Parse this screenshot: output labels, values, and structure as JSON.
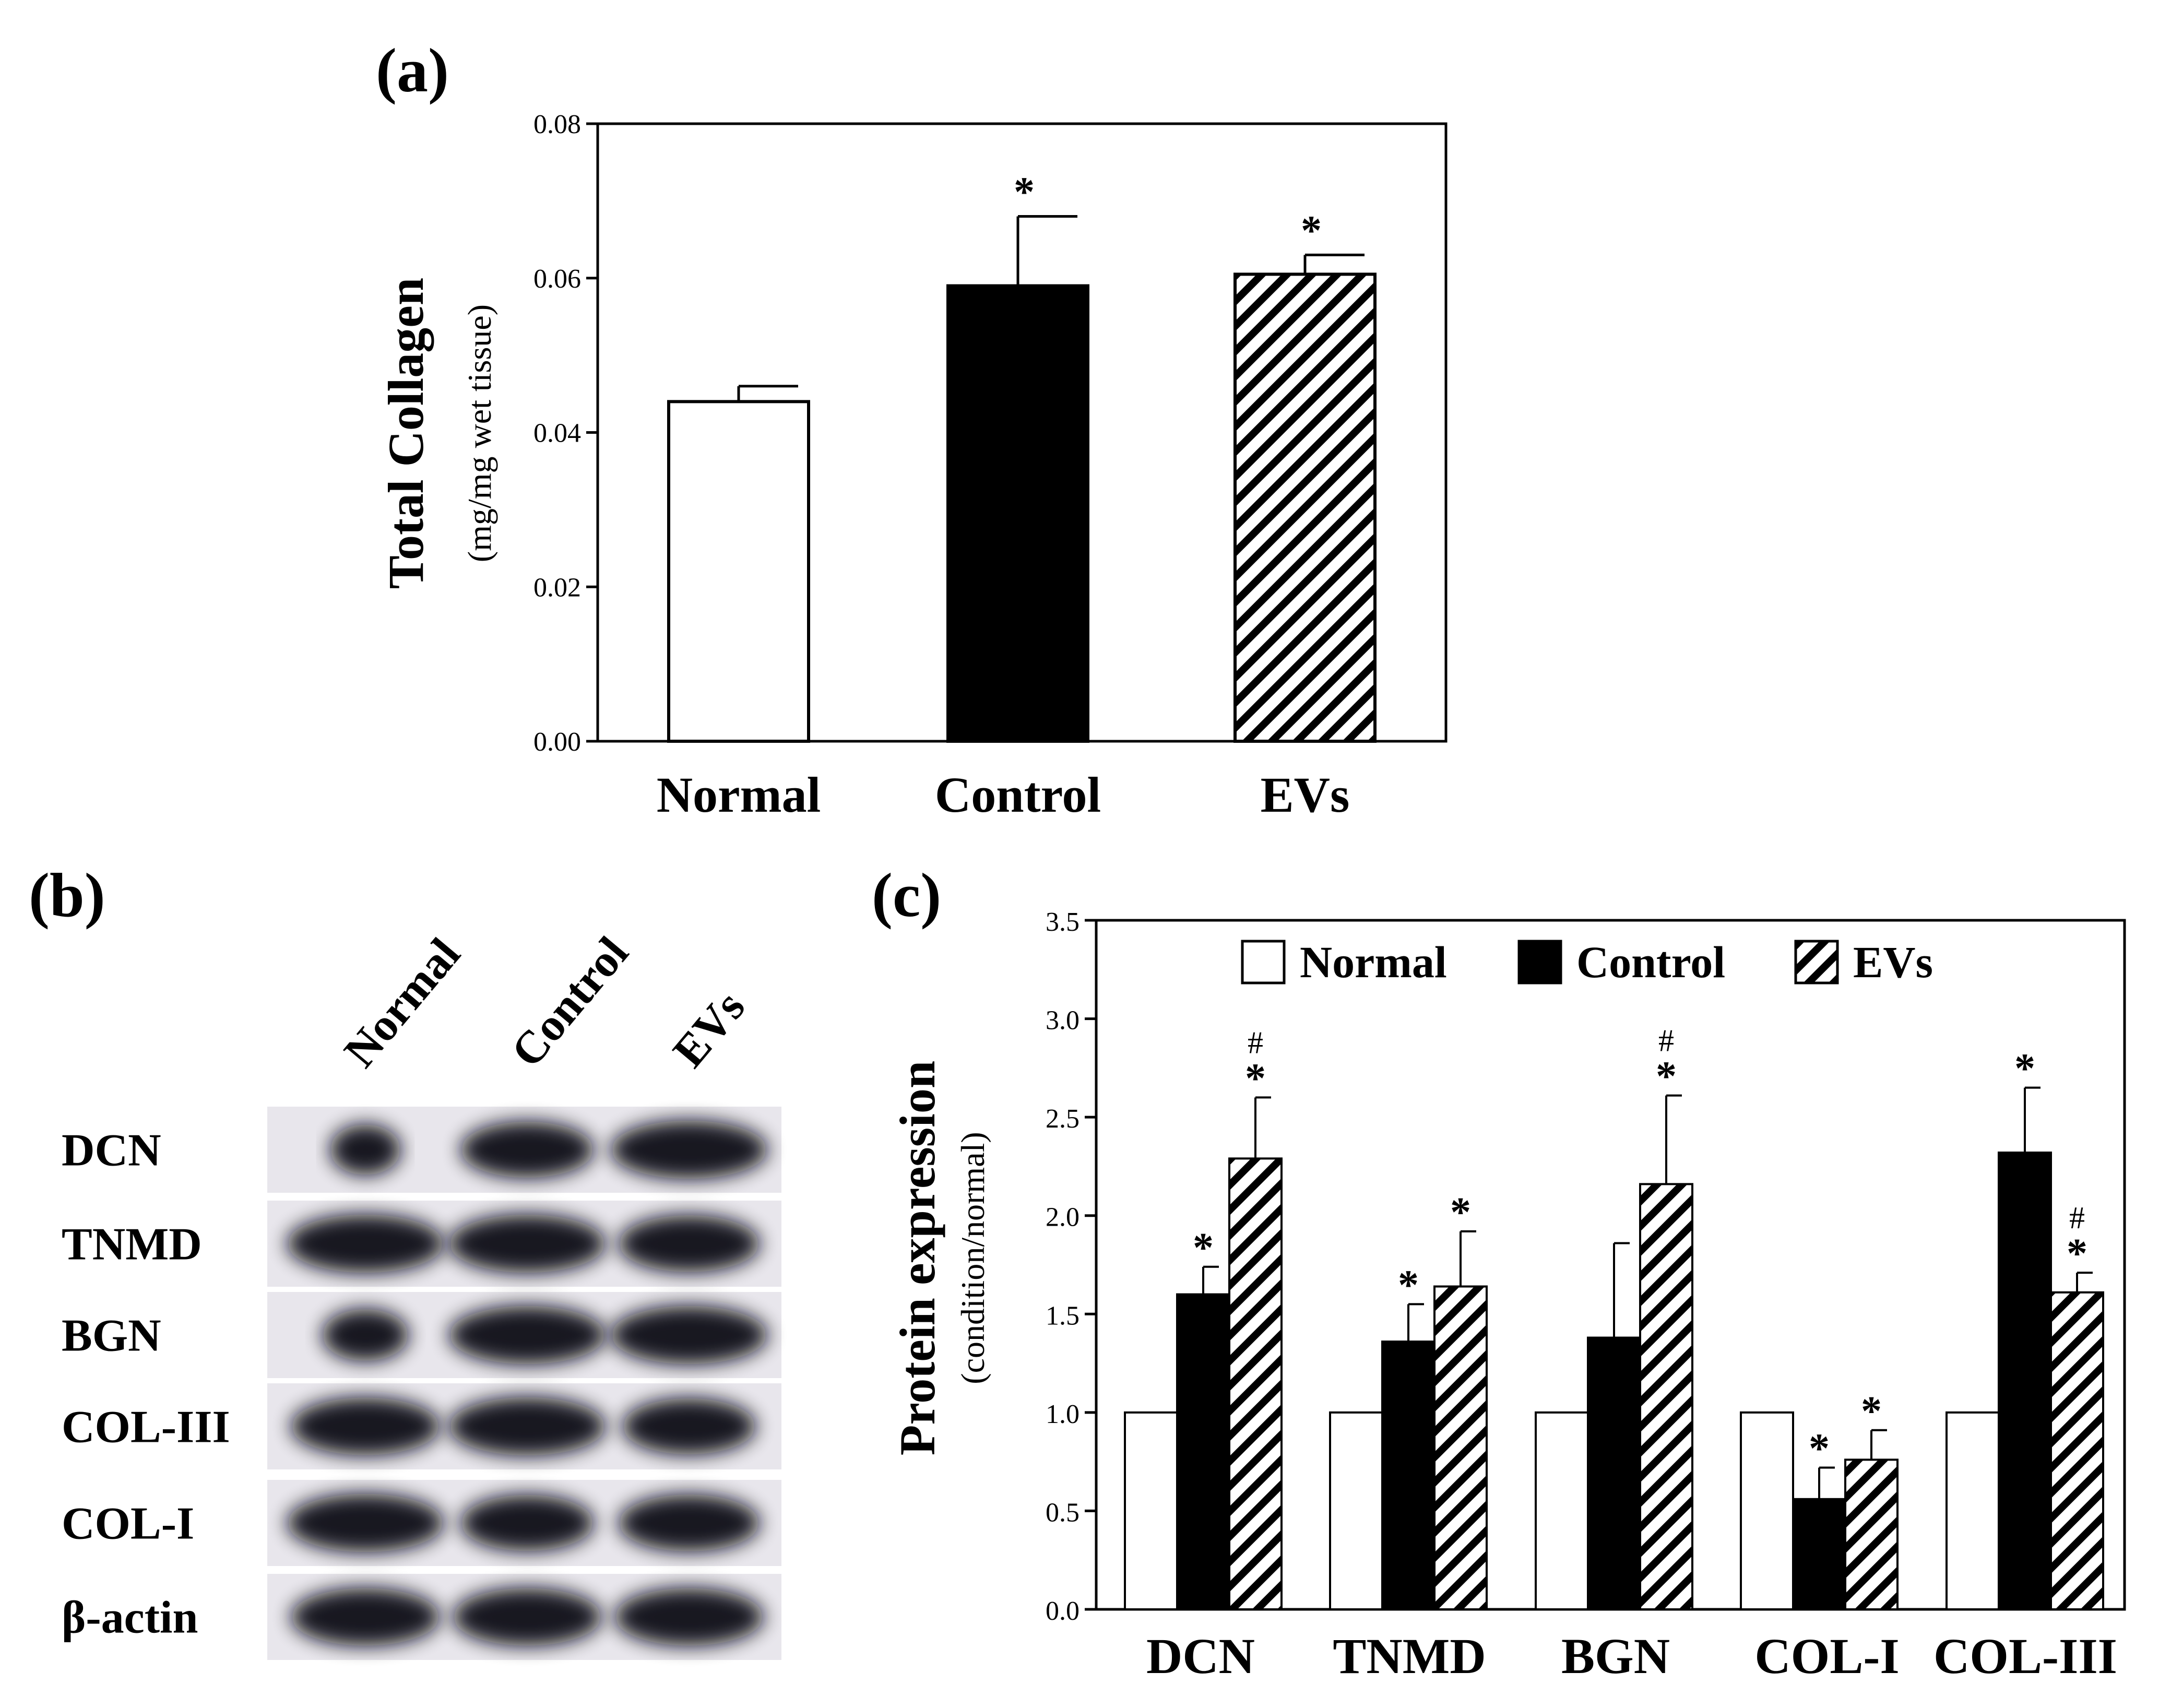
{
  "colors": {
    "normal": "#ffffff",
    "control": "#000000",
    "evs_hatch": "#000000",
    "axis": "#000000",
    "blot_bg": "#e8e6ec"
  },
  "chart_data": [
    {
      "panel": "(a)",
      "type": "bar",
      "ylabel": "Total Collagen",
      "ylabel_sub": "(mg/mg wet tissue)",
      "categories": [
        "Normal",
        "Control",
        "EVs"
      ],
      "values": [
        0.044,
        0.059,
        0.0605
      ],
      "errors": [
        0.002,
        0.009,
        0.0025
      ],
      "annotations": [
        "",
        "*",
        "*"
      ],
      "ylim": [
        0,
        0.08
      ],
      "yticks": [
        "0.00",
        "0.02",
        "0.04",
        "0.06",
        "0.08"
      ],
      "fills": [
        "white",
        "black",
        "hatch"
      ]
    },
    {
      "panel": "(c)",
      "type": "bar",
      "ylabel": "Protein expression",
      "ylabel_sub": "(condition/normal)",
      "categories": [
        "DCN",
        "TNMD",
        "BGN",
        "COL-I",
        "COL-III"
      ],
      "series": [
        {
          "name": "Normal",
          "values": [
            1.0,
            1.0,
            1.0,
            1.0,
            1.0
          ],
          "errors": [
            0,
            0,
            0,
            0,
            0
          ],
          "stars": [
            "",
            "",
            "",
            "",
            ""
          ],
          "hashes": [
            "",
            "",
            "",
            "",
            ""
          ]
        },
        {
          "name": "Control",
          "values": [
            1.6,
            1.36,
            1.38,
            0.56,
            2.32
          ],
          "errors": [
            0.14,
            0.19,
            0.48,
            0.16,
            0.33
          ],
          "stars": [
            "*",
            "*",
            "",
            "*",
            "*"
          ],
          "hashes": [
            "",
            "",
            "",
            "",
            ""
          ]
        },
        {
          "name": "EVs",
          "values": [
            2.29,
            1.64,
            2.16,
            0.76,
            1.61
          ],
          "errors": [
            0.31,
            0.28,
            0.45,
            0.15,
            0.1
          ],
          "stars": [
            "*",
            "*",
            "*",
            "*",
            "*"
          ],
          "hashes": [
            "#",
            "",
            "#",
            "",
            "#"
          ]
        }
      ],
      "ylim": [
        0,
        3.5
      ],
      "yticks": [
        "0.0",
        "0.5",
        "1.0",
        "1.5",
        "2.0",
        "2.5",
        "3.0",
        "3.5"
      ],
      "legend": {
        "position": "top",
        "entries": [
          "Normal",
          "Control",
          "EVs"
        ]
      }
    }
  ],
  "western_blot": {
    "panel": "(b)",
    "lanes": [
      "Normal",
      "Control",
      "EVs"
    ],
    "rows": [
      "DCN",
      "TNMD",
      "BGN",
      "COL-III",
      "COL-I",
      "β-actin"
    ]
  }
}
